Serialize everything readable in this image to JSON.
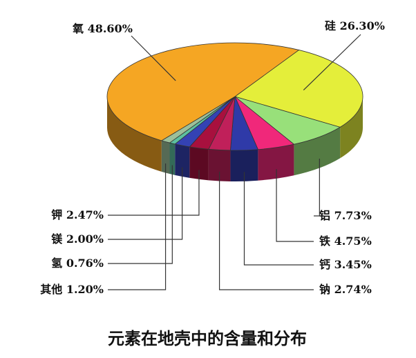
{
  "chart_data": {
    "type": "pie",
    "title": "元素在地壳中的含量和分布",
    "categories": [
      "硅",
      "铝",
      "铁",
      "钙",
      "钠",
      "钾",
      "镁",
      "氢",
      "其他",
      "氧"
    ],
    "values": [
      26.3,
      7.73,
      4.75,
      3.45,
      2.74,
      2.47,
      2.0,
      0.76,
      1.2,
      48.6
    ],
    "value_labels": [
      "26.30%",
      "7.73%",
      "4.75%",
      "3.45%",
      "2.74%",
      "2.47%",
      "2.00%",
      "0.76%",
      "1.20%",
      "48.60%"
    ],
    "colors": [
      "#e4ee3a",
      "#98e07a",
      "#f0287a",
      "#2f3aa8",
      "#c0205a",
      "#a8103e",
      "#3442b4",
      "#5cc0a0",
      "#9cc09a",
      "#f5a623"
    ]
  }
}
